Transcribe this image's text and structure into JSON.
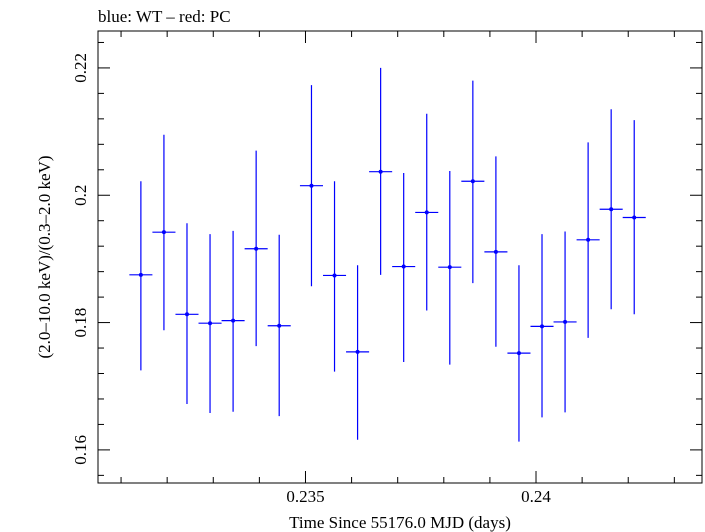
{
  "chart_data": {
    "type": "scatter",
    "title": "blue: WT – red: PC",
    "xlabel": "Time Since 55176.0 MJD (days)",
    "ylabel": "(2.0–10.0 keV)/(0.3–2.0 keV)",
    "xlim": [
      0.2305,
      0.2436
    ],
    "ylim": [
      0.1548,
      0.2258
    ],
    "xticks": [
      0.235,
      0.24
    ],
    "xtick_labels": [
      "0.235",
      "0.24"
    ],
    "yticks": [
      0.16,
      0.18,
      0.2,
      0.22
    ],
    "ytick_labels": [
      "0.16",
      "0.18",
      "0.2",
      "0.22"
    ],
    "grid": false,
    "series": [
      {
        "color": "#0000ff",
        "points": [
          {
            "x": 0.23143,
            "y": 0.1875,
            "xerr": 0.00025,
            "ylo": 0.1725,
            "yhi": 0.2022
          },
          {
            "x": 0.23193,
            "y": 0.1942,
            "xerr": 0.00025,
            "ylo": 0.1788,
            "yhi": 0.2095
          },
          {
            "x": 0.23243,
            "y": 0.1813,
            "xerr": 0.00025,
            "ylo": 0.1672,
            "yhi": 0.1956
          },
          {
            "x": 0.23293,
            "y": 0.1799,
            "xerr": 0.00025,
            "ylo": 0.1658,
            "yhi": 0.1939
          },
          {
            "x": 0.23343,
            "y": 0.1803,
            "xerr": 0.00025,
            "ylo": 0.166,
            "yhi": 0.1944
          },
          {
            "x": 0.23393,
            "y": 0.1916,
            "xerr": 0.00025,
            "ylo": 0.1763,
            "yhi": 0.207
          },
          {
            "x": 0.23443,
            "y": 0.1795,
            "xerr": 0.00025,
            "ylo": 0.1653,
            "yhi": 0.1938
          },
          {
            "x": 0.23513,
            "y": 0.2015,
            "xerr": 0.00025,
            "ylo": 0.1857,
            "yhi": 0.2173
          },
          {
            "x": 0.23563,
            "y": 0.1874,
            "xerr": 0.00025,
            "ylo": 0.1723,
            "yhi": 0.2022
          },
          {
            "x": 0.23613,
            "y": 0.1754,
            "xerr": 0.00025,
            "ylo": 0.1616,
            "yhi": 0.189
          },
          {
            "x": 0.23663,
            "y": 0.2037,
            "xerr": 0.00025,
            "ylo": 0.1875,
            "yhi": 0.22
          },
          {
            "x": 0.23713,
            "y": 0.1888,
            "xerr": 0.00025,
            "ylo": 0.1738,
            "yhi": 0.2035
          },
          {
            "x": 0.23763,
            "y": 0.1973,
            "xerr": 0.00025,
            "ylo": 0.1819,
            "yhi": 0.2128
          },
          {
            "x": 0.23813,
            "y": 0.1887,
            "xerr": 0.00025,
            "ylo": 0.1734,
            "yhi": 0.2038
          },
          {
            "x": 0.23863,
            "y": 0.2022,
            "xerr": 0.00025,
            "ylo": 0.1862,
            "yhi": 0.218
          },
          {
            "x": 0.23913,
            "y": 0.1911,
            "xerr": 0.00025,
            "ylo": 0.1762,
            "yhi": 0.2061
          },
          {
            "x": 0.23963,
            "y": 0.1752,
            "xerr": 0.00025,
            "ylo": 0.1613,
            "yhi": 0.189
          },
          {
            "x": 0.24013,
            "y": 0.1794,
            "xerr": 0.00025,
            "ylo": 0.1651,
            "yhi": 0.1939
          },
          {
            "x": 0.24063,
            "y": 0.1801,
            "xerr": 0.00025,
            "ylo": 0.1659,
            "yhi": 0.1943
          },
          {
            "x": 0.24113,
            "y": 0.193,
            "xerr": 0.00025,
            "ylo": 0.1776,
            "yhi": 0.2083
          },
          {
            "x": 0.24163,
            "y": 0.1978,
            "xerr": 0.00025,
            "ylo": 0.1821,
            "yhi": 0.2135
          },
          {
            "x": 0.24213,
            "y": 0.1965,
            "xerr": 0.00025,
            "ylo": 0.1813,
            "yhi": 0.2118
          }
        ]
      }
    ]
  }
}
